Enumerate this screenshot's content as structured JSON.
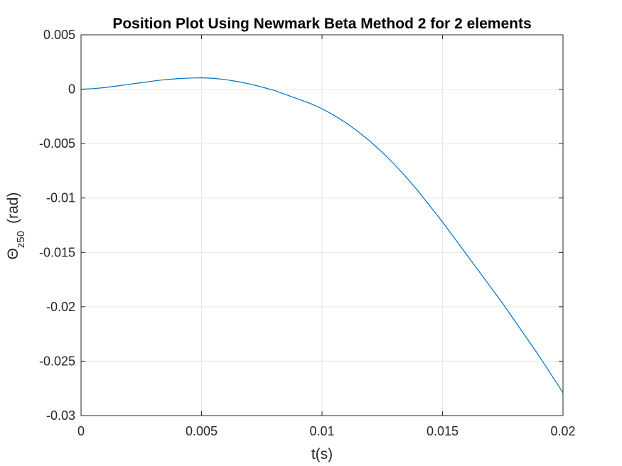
{
  "chart_data": {
    "type": "line",
    "title": "Position Plot Using Newmark Beta Method 2 for 2 elements",
    "xlabel": "t(s)",
    "ylabel": {
      "symbol": "Θ",
      "subscript": "z50",
      "unit": "(rad)"
    },
    "xlim": [
      0,
      0.02
    ],
    "ylim": [
      -0.03,
      0.005
    ],
    "xticks": [
      0,
      0.005,
      0.01,
      0.015,
      0.02
    ],
    "xtick_labels": [
      "0",
      "0.005",
      "0.01",
      "0.015",
      "0.02"
    ],
    "yticks": [
      0.005,
      0,
      -0.005,
      -0.01,
      -0.015,
      -0.02,
      -0.025,
      -0.03
    ],
    "ytick_labels": [
      "0.005",
      "0",
      "-0.005",
      "-0.01",
      "-0.015",
      "-0.02",
      "-0.025",
      "-0.03"
    ],
    "grid": true,
    "line_color": "#0072BD",
    "series": [
      {
        "x": [
          0,
          0.0005,
          0.001,
          0.0015,
          0.002,
          0.0025,
          0.003,
          0.0035,
          0.004,
          0.0045,
          0.005,
          0.0055,
          0.006,
          0.0065,
          0.007,
          0.0075,
          0.008,
          0.0085,
          0.009,
          0.0095,
          0.01,
          0.0105,
          0.011,
          0.0115,
          0.012,
          0.0125,
          0.013,
          0.0135,
          0.014,
          0.0145,
          0.015,
          0.0155,
          0.016,
          0.0165,
          0.017,
          0.0175,
          0.018,
          0.0185,
          0.019,
          0.0195,
          0.02
        ],
        "y": [
          0,
          5e-05,
          0.00015,
          0.0003,
          0.00045,
          0.0006,
          0.00075,
          0.00088,
          0.00097,
          0.00102,
          0.00105,
          0.001,
          0.00088,
          0.0007,
          0.00048,
          0.0002,
          -0.0001,
          -0.0005,
          -0.0009,
          -0.0013,
          -0.0018,
          -0.0024,
          -0.0031,
          -0.0039,
          -0.0048,
          -0.0058,
          -0.0069,
          -0.0081,
          -0.0094,
          -0.0108,
          -0.0122,
          -0.0137,
          -0.0152,
          -0.0167,
          -0.0182,
          -0.0197,
          -0.0213,
          -0.0229,
          -0.0245,
          -0.0262,
          -0.0279
        ]
      }
    ]
  }
}
